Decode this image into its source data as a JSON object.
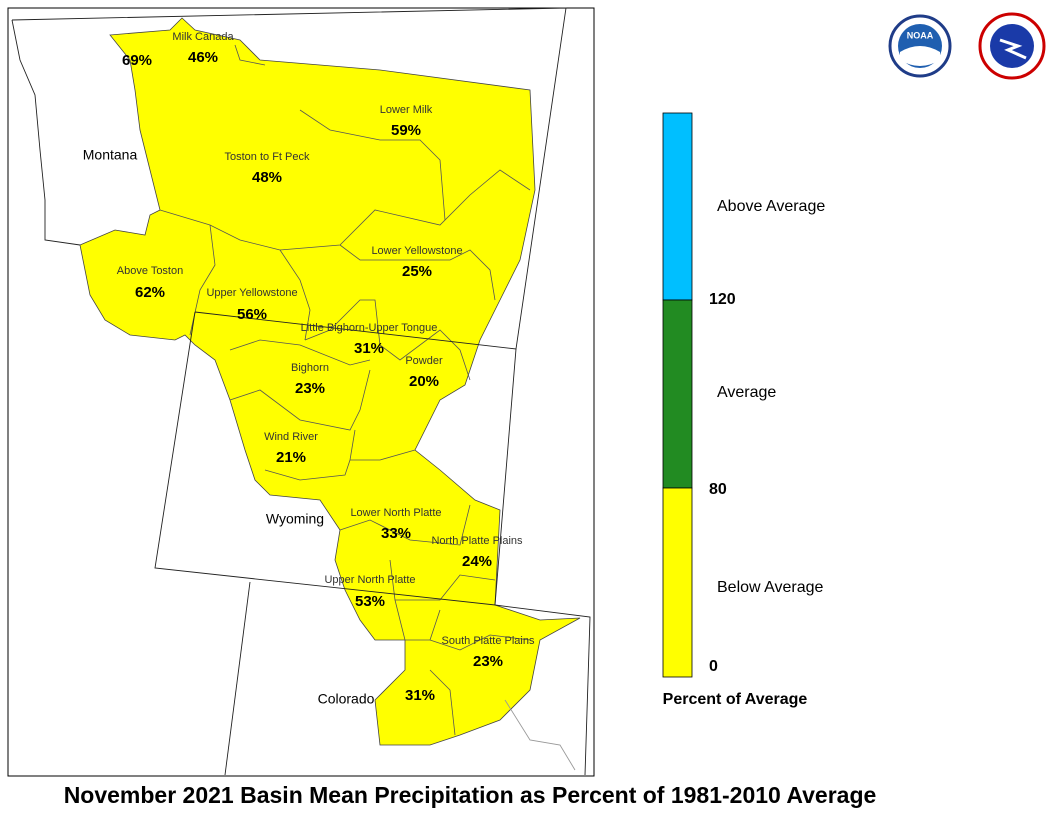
{
  "title": "November 2021 Basin Mean Precipitation as Percent of 1981-2010 Average",
  "logos": {
    "noaa": "NOAA"
  },
  "states": [
    "Montana",
    "Wyoming",
    "Colorado"
  ],
  "basins": [
    {
      "value": "69%"
    },
    {
      "name": "Milk Canada",
      "value": "46%"
    },
    {
      "name": "Lower Milk",
      "value": "59%"
    },
    {
      "name": "Toston to Ft Peck",
      "value": "48%"
    },
    {
      "name": "Lower Yellowstone",
      "value": "25%"
    },
    {
      "name": "Above Toston",
      "value": "62%"
    },
    {
      "name": "Upper Yellowstone",
      "value": "56%"
    },
    {
      "name": "Little Bighorn-Upper Tongue",
      "value": "31%"
    },
    {
      "name": "Bighorn",
      "value": "23%"
    },
    {
      "name": "Powder",
      "value": "20%"
    },
    {
      "name": "Wind River",
      "value": "21%"
    },
    {
      "name": "Lower North Platte",
      "value": "33%"
    },
    {
      "name": "North Platte Plains",
      "value": "24%"
    },
    {
      "name": "Upper North Platte",
      "value": "53%"
    },
    {
      "name": "South Platte Plains",
      "value": "23%"
    },
    {
      "value": "31%"
    }
  ],
  "legend": {
    "title": "Percent of Average",
    "classes": [
      {
        "label": "Above Average",
        "color": "#00bfff"
      },
      {
        "label": "Average",
        "color": "#228b22"
      },
      {
        "label": "Below Average",
        "color": "#ffff00"
      }
    ],
    "breaks": [
      "120",
      "80",
      "0"
    ]
  }
}
